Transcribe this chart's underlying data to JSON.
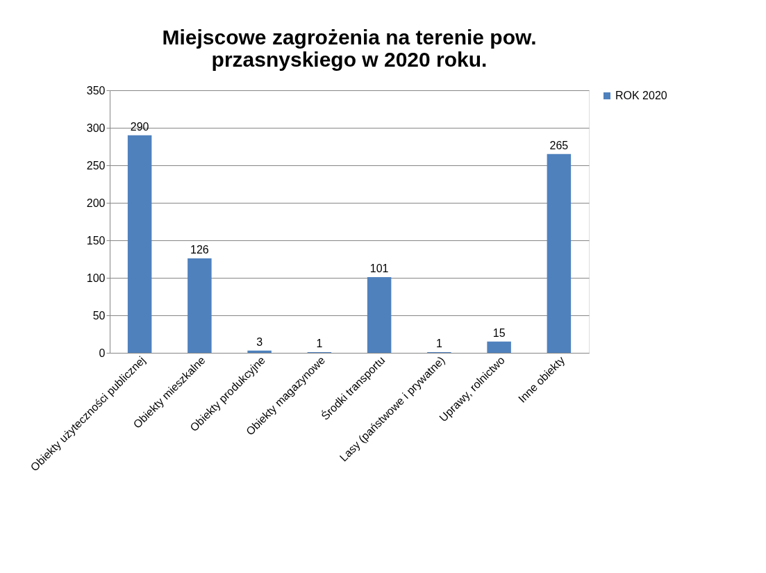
{
  "chart_data": {
    "type": "bar",
    "title": "Miejscowe zagrożenia na terenie pow. przasnyskiego w 2020 roku.",
    "categories": [
      "Obiekty użyteczności publicznej",
      "Obiekty mieszkalne",
      "Obiekty produkcyjne",
      "Obiekty magazynowe",
      "Środki transportu",
      "Lasy (państwowe i prywatne)",
      "Uprawy, rolnictwo",
      "Inne obiekty"
    ],
    "series": [
      {
        "name": "ROK 2020",
        "color": "#4f81bd",
        "values": [
          290,
          126,
          3,
          1,
          101,
          1,
          15,
          265
        ]
      }
    ],
    "ylim": [
      0,
      350
    ],
    "yticks": [
      0,
      50,
      100,
      150,
      200,
      250,
      300,
      350
    ],
    "grid": "y",
    "legend": "right",
    "data_labels": true
  }
}
